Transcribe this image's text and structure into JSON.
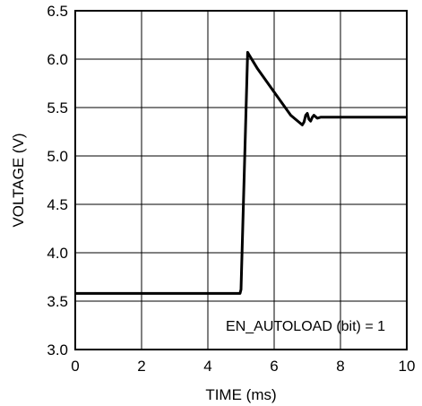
{
  "chart_data": {
    "type": "line",
    "xlabel": "TIME (ms)",
    "ylabel": "VOLTAGE (V)",
    "xlim": [
      0,
      10
    ],
    "ylim": [
      3.0,
      6.5
    ],
    "x_ticks": [
      0,
      2,
      4,
      6,
      8,
      10
    ],
    "y_ticks": [
      3.0,
      3.5,
      4.0,
      4.5,
      5.0,
      5.5,
      6.0,
      6.5
    ],
    "x_tick_labels": [
      "0",
      "2",
      "4",
      "6",
      "8",
      "10"
    ],
    "y_tick_labels": [
      "3.0",
      "3.5",
      "4.0",
      "4.5",
      "5.0",
      "5.5",
      "6.0",
      "6.5"
    ],
    "grid": true,
    "annotation": "EN_AUTOLOAD (bit) = 1",
    "series": [
      {
        "color": "#000000",
        "x": [
          0,
          4.97,
          5.0,
          5.2,
          5.25,
          5.5,
          6.0,
          6.5,
          6.85,
          6.9,
          6.95,
          7.0,
          7.05,
          7.1,
          7.15,
          7.2,
          7.3,
          7.4,
          7.5,
          8.0,
          9.0,
          10.0
        ],
        "y": [
          3.58,
          3.58,
          3.62,
          6.07,
          6.04,
          5.9,
          5.66,
          5.42,
          5.32,
          5.35,
          5.42,
          5.44,
          5.38,
          5.36,
          5.4,
          5.42,
          5.39,
          5.4,
          5.4,
          5.4,
          5.4,
          5.4
        ]
      }
    ]
  }
}
